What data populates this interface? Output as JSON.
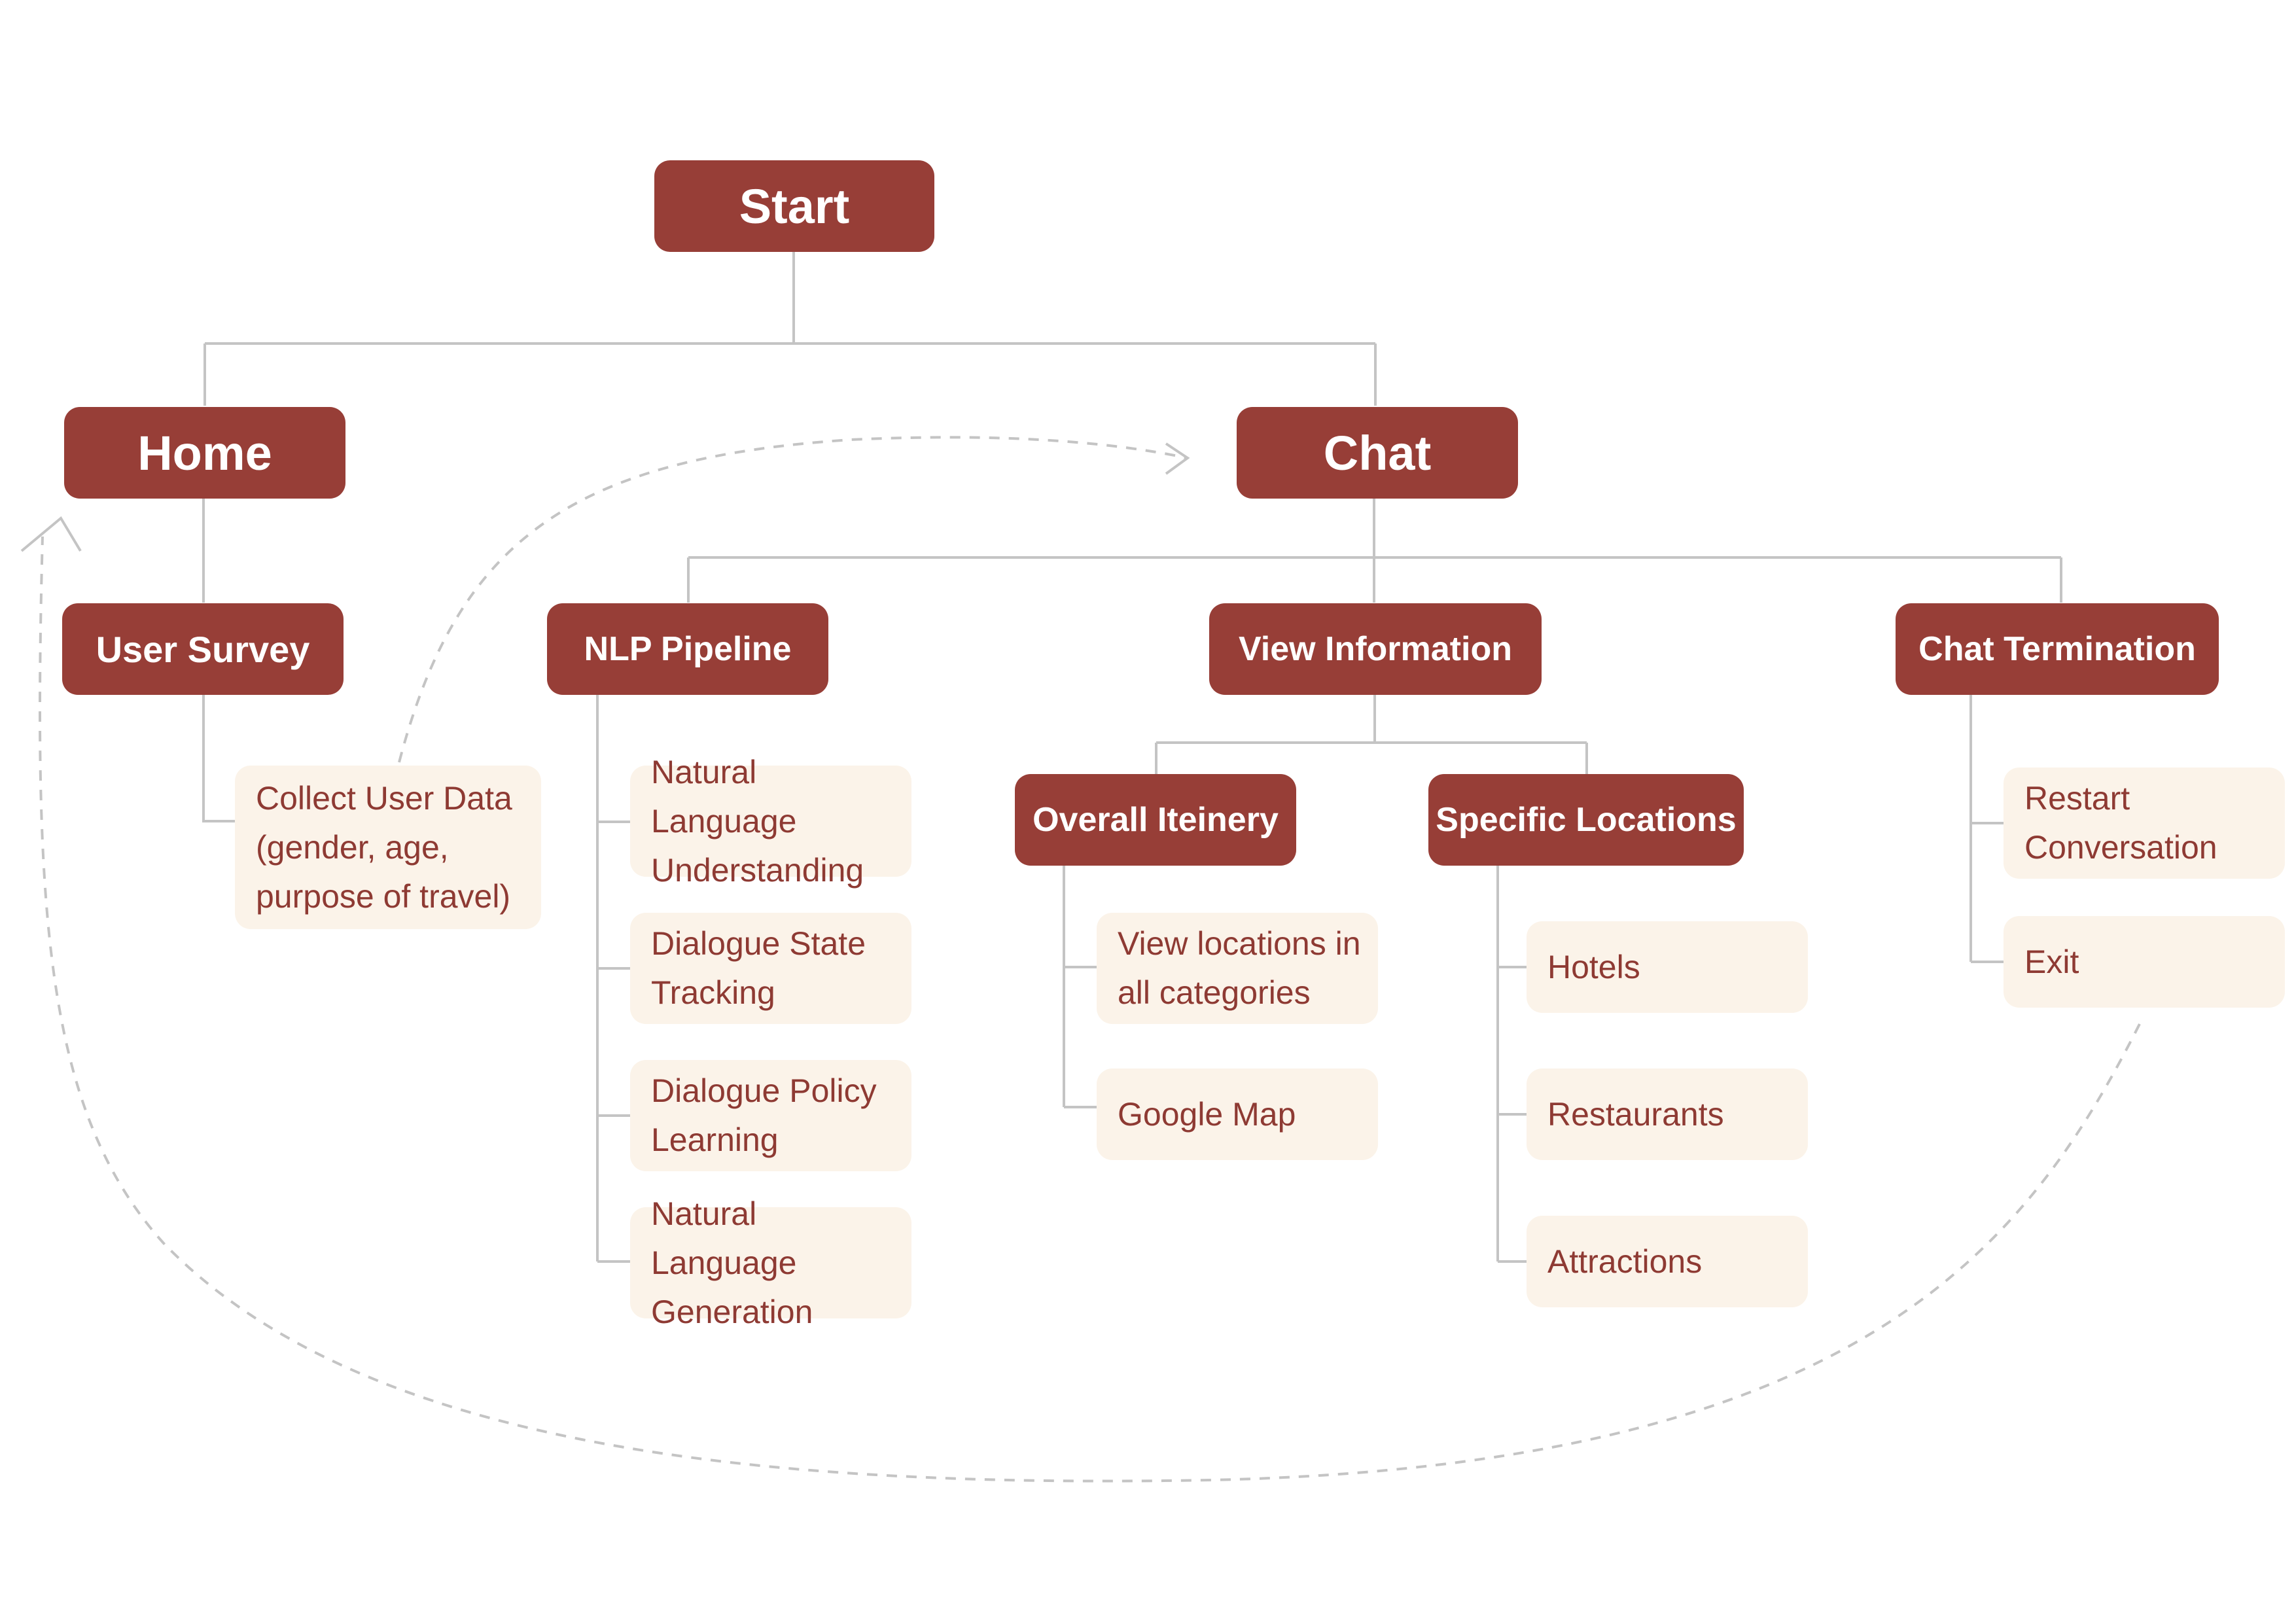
{
  "nodes": {
    "start": "Start",
    "home": "Home",
    "chat": "Chat",
    "user_survey": "User Survey",
    "collect_user_data": "Collect User Data\n(gender, age,\npurpose of travel)",
    "nlp_pipeline": "NLP Pipeline",
    "nlu": "Natural Language\nUnderstanding",
    "dst": "Dialogue State\nTracking",
    "dpl": "Dialogue Policy\nLearning",
    "nlg": "Natural Language\nGeneration",
    "view_information": "View Information",
    "overall_itinerary": "Overall Iteinery",
    "view_locations": "View locations in\nall categories",
    "google_map": "Google Map",
    "specific_locations": "Specific Locations",
    "hotels": "Hotels",
    "restaurants": "Restaurants",
    "attractions": "Attractions",
    "chat_termination": "Chat Termination",
    "restart_conversation": "Restart\nConversation",
    "exit": "Exit"
  },
  "colors": {
    "primary_node": "#973e37",
    "secondary_node": "#fbf3e9",
    "secondary_text": "#8e3a33",
    "connector": "#c4c4c4"
  }
}
